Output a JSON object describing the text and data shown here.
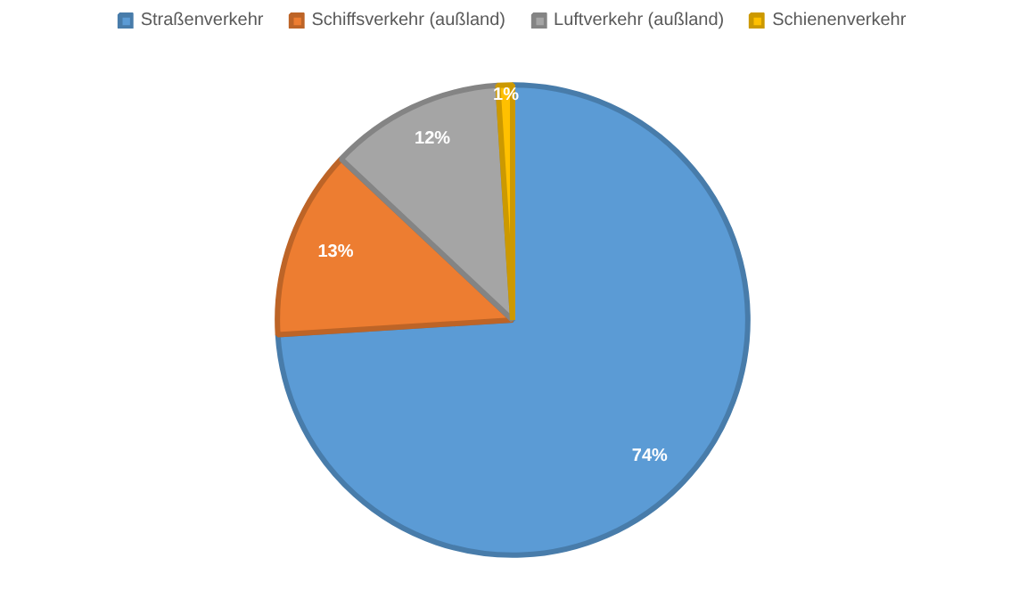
{
  "chart_data": {
    "type": "pie",
    "categories": [
      "Straßenverkehr",
      "Schiffsverkehr (außland)",
      "Luftverkehr (außland)",
      "Schienenverkehr"
    ],
    "values": [
      74,
      13,
      12,
      1
    ],
    "colors": [
      "#5b9bd5",
      "#ed7d31",
      "#a5a5a5",
      "#ffc000"
    ],
    "value_labels": [
      "74%",
      "13%",
      "12%",
      "1%"
    ],
    "legend": "top"
  }
}
